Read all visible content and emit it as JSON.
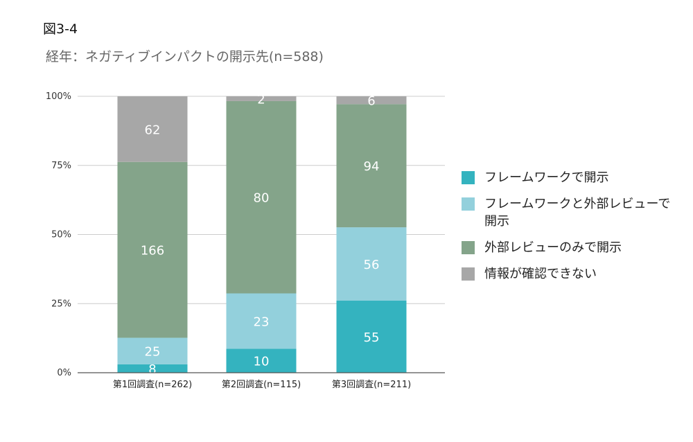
{
  "figure_label": "図3-4",
  "subtitle": "経年：ネガティブインパクトの開示先(n=588)",
  "colors": {
    "framework_only": "#34b3bf",
    "framework_and_external": "#93d0dc",
    "external_only": "#84a48a",
    "unknown": "#a7a7a7",
    "gridline": "#cccccc",
    "axis": "#555555"
  },
  "chart_data": {
    "type": "bar",
    "stacked": true,
    "normalized": true,
    "categories": [
      "第1回調査(n=262)",
      "第2回調査(n=115)",
      "第3回調査(n=211)"
    ],
    "series": [
      {
        "name": "フレームワークで開示",
        "values": [
          8,
          10,
          55
        ],
        "color_key": "framework_only"
      },
      {
        "name": "フレームワークと外部レビューで開示",
        "values": [
          25,
          23,
          56
        ],
        "color_key": "framework_and_external"
      },
      {
        "name": "外部レビューのみで開示",
        "values": [
          166,
          80,
          94
        ],
        "color_key": "external_only"
      },
      {
        "name": "情報が確認できない",
        "values": [
          62,
          2,
          6
        ],
        "color_key": "unknown"
      }
    ],
    "y_ticks": [
      "0%",
      "25%",
      "50%",
      "75%",
      "100%"
    ],
    "ylim": [
      0,
      100
    ],
    "grid": true,
    "legend_position": "right",
    "title": "",
    "xlabel": "",
    "ylabel": ""
  },
  "legend": [
    {
      "label": "フレームワークで開示",
      "color_key": "framework_only"
    },
    {
      "label": "フレームワークと外部レビューで開示",
      "color_key": "framework_and_external"
    },
    {
      "label": "外部レビューのみで開示",
      "color_key": "external_only"
    },
    {
      "label": "情報が確認できない",
      "color_key": "unknown"
    }
  ]
}
